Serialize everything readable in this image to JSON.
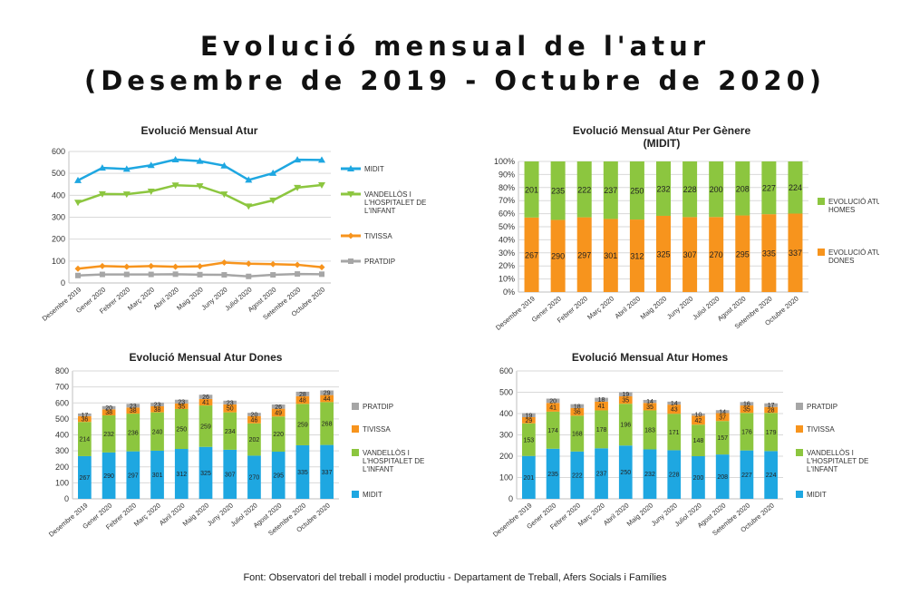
{
  "page": {
    "title_line1": "Evolució mensual de l'atur",
    "title_line2": "(Desembre de 2019 - Octubre de 2020)",
    "source": "Font: Observatori del treball i model productiu - Departament de Treball, Afers Socials i Famílies"
  },
  "colors": {
    "midit": "#1ea7e1",
    "vandellos": "#8cc63f",
    "tivissa": "#f7941d",
    "pratdip": "#a6a6a6"
  },
  "chart_data": [
    {
      "type": "line",
      "title": "Evolució Mensual Atur",
      "categories": [
        "Desembre 2019",
        "Gener 2020",
        "Febrer 2020",
        "Març 2020",
        "Abril 2020",
        "Maig 2020",
        "Juny 2020",
        "Juliol 2020",
        "Agost 2020",
        "Setembre 2020",
        "Octubre 2020"
      ],
      "ylim": [
        0,
        600
      ],
      "yticks": [
        "0",
        "100",
        "200",
        "300",
        "400",
        "500",
        "600"
      ],
      "series": [
        {
          "name": "MIDIT",
          "values": [
            468,
            525,
            520,
            537,
            563,
            556,
            535,
            470,
            501,
            562,
            561
          ]
        },
        {
          "name": "VANDELLÒS I L'HOSPITALET DE L'INFANT",
          "values": [
            367,
            406,
            405,
            418,
            446,
            442,
            405,
            350,
            377,
            435,
            447
          ]
        },
        {
          "name": "TIVISSA",
          "values": [
            65,
            77,
            74,
            77,
            74,
            76,
            93,
            88,
            86,
            83,
            72
          ]
        },
        {
          "name": "PRATDIP",
          "values": [
            34,
            39,
            39,
            39,
            40,
            38,
            37,
            30,
            37,
            41,
            40
          ]
        }
      ]
    },
    {
      "type": "bar",
      "stacked": "percent",
      "title": "Evolució Mensual Atur Per Gènere",
      "subtitle": "(MIDIT)",
      "categories": [
        "Desembre 2019",
        "Gener 2020",
        "Febrer 2020",
        "Març 2020",
        "Abril 2020",
        "Maig 2020",
        "Juny 2020",
        "Juliol 2020",
        "Agost 2020",
        "Setembre 2020",
        "Octubre 2020"
      ],
      "yticks": [
        "0%",
        "10%",
        "20%",
        "30%",
        "40%",
        "50%",
        "60%",
        "70%",
        "80%",
        "90%",
        "100%"
      ],
      "series": [
        {
          "name": "EVOLUCIÓ ATUR DONES",
          "values": [
            267,
            290,
            297,
            301,
            312,
            325,
            307,
            270,
            295,
            335,
            337
          ]
        },
        {
          "name": "EVOLUCIÓ ATUR HOMES",
          "values": [
            201,
            235,
            222,
            237,
            250,
            232,
            228,
            200,
            208,
            227,
            224
          ]
        }
      ]
    },
    {
      "type": "bar",
      "stacked": "normal",
      "title": "Evolució Mensual Atur Dones",
      "categories": [
        "Desembre 2019",
        "Gener 2020",
        "Febrer 2020",
        "Març 2020",
        "Abril 2020",
        "Maig 2020",
        "Juny 2020",
        "Juliol 2020",
        "Agost 2020",
        "Setembre 2020",
        "Octubre 2020"
      ],
      "ylim": [
        0,
        800
      ],
      "yticks": [
        "0",
        "100",
        "200",
        "300",
        "400",
        "500",
        "600",
        "700",
        "800"
      ],
      "series": [
        {
          "name": "MIDIT",
          "values": [
            267,
            290,
            297,
            301,
            312,
            325,
            307,
            270,
            295,
            335,
            337
          ]
        },
        {
          "name": "VANDELLÒS I L'HOSPITALET DE L'INFANT",
          "values": [
            214,
            232,
            236,
            240,
            250,
            259,
            234,
            202,
            220,
            259,
            268
          ]
        },
        {
          "name": "TIVISSA",
          "values": [
            36,
            38,
            38,
            38,
            35,
            41,
            50,
            46,
            49,
            48,
            44
          ]
        },
        {
          "name": "PRATDIP",
          "values": [
            17,
            20,
            23,
            23,
            23,
            26,
            23,
            20,
            26,
            28,
            29
          ]
        }
      ]
    },
    {
      "type": "bar",
      "stacked": "normal",
      "title": "Evolució Mensual Atur Homes",
      "categories": [
        "Desembre 2019",
        "Gener 2020",
        "Febrer 2020",
        "Març 2020",
        "Abril 2020",
        "Maig 2020",
        "Juny 2020",
        "Juliol 2020",
        "Agost 2020",
        "Setembre 2020",
        "Octubre 2020"
      ],
      "ylim": [
        0,
        600
      ],
      "yticks": [
        "0",
        "100",
        "200",
        "300",
        "400",
        "500",
        "600"
      ],
      "series": [
        {
          "name": "MIDIT",
          "values": [
            201,
            235,
            222,
            237,
            250,
            232,
            228,
            200,
            208,
            227,
            224
          ]
        },
        {
          "name": "VANDELLÒS I L'HOSPITALET DE L'INFANT",
          "values": [
            153,
            174,
            168,
            178,
            196,
            183,
            171,
            148,
            157,
            176,
            179
          ]
        },
        {
          "name": "TIVISSA",
          "values": [
            29,
            41,
            36,
            41,
            35,
            35,
            43,
            42,
            37,
            35,
            28
          ]
        },
        {
          "name": "PRATDIP",
          "values": [
            19,
            20,
            18,
            18,
            19,
            14,
            14,
            10,
            14,
            16,
            17
          ]
        }
      ]
    }
  ]
}
